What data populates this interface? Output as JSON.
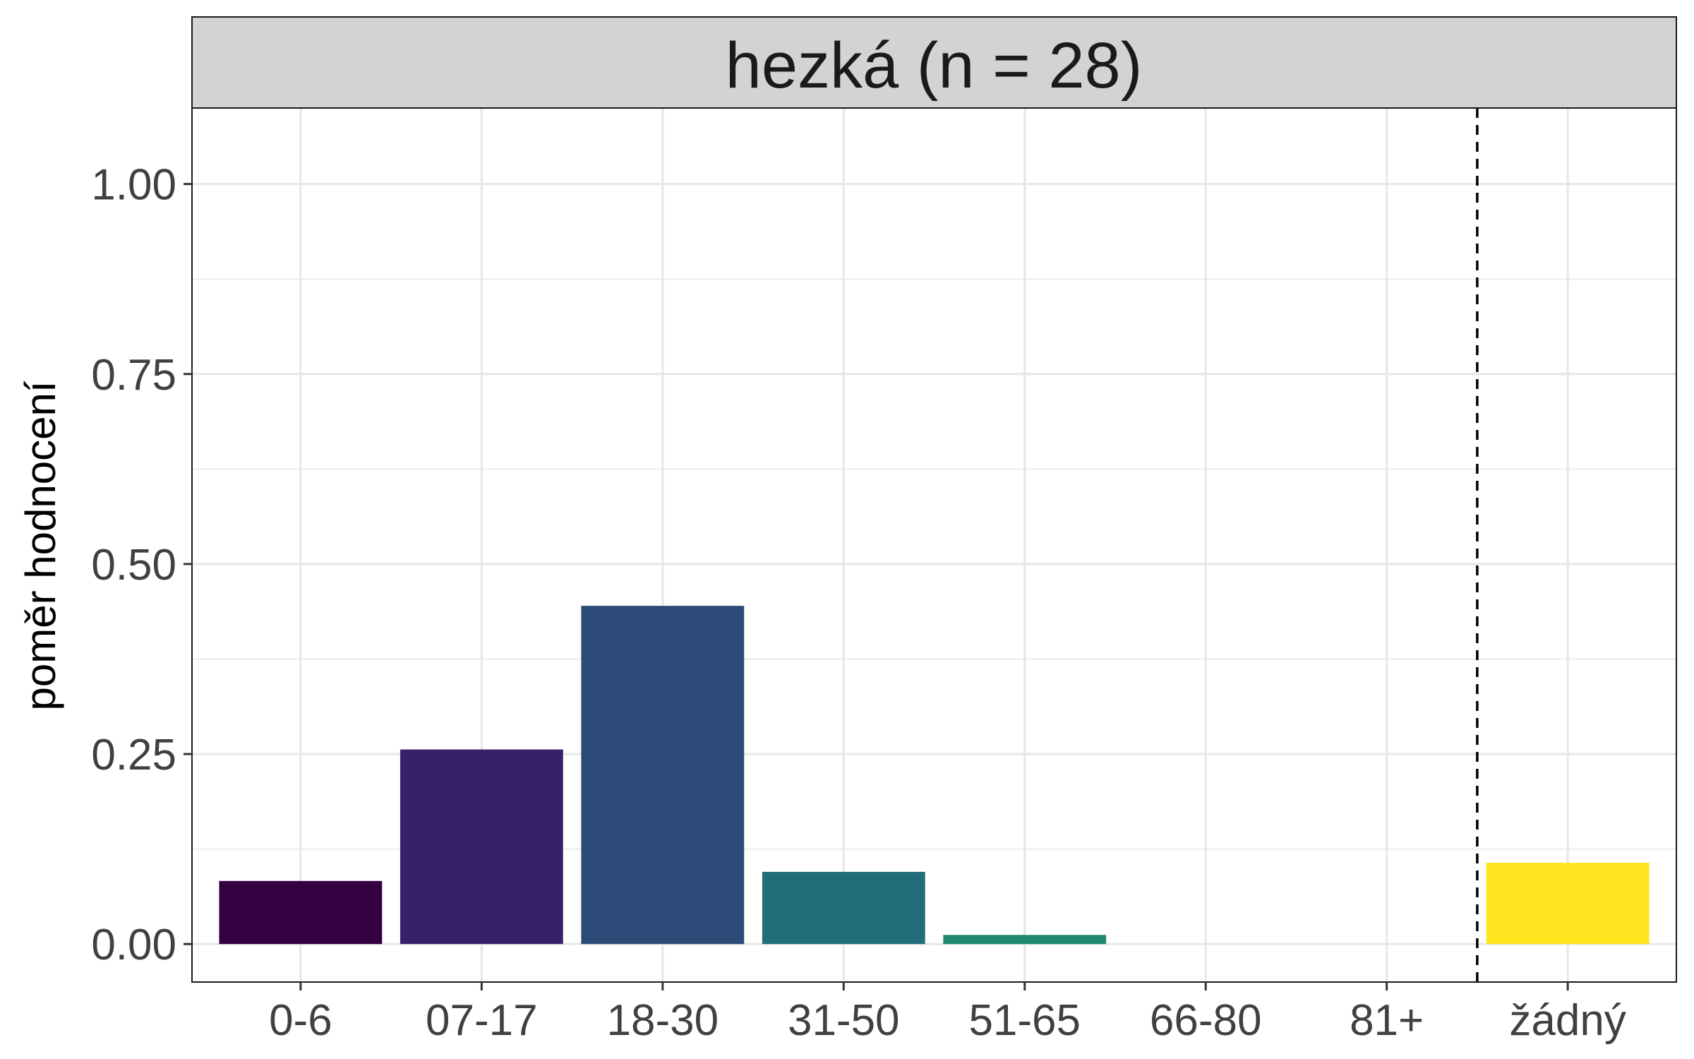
{
  "chart_data": {
    "type": "bar",
    "title": "hezká (n = 28)",
    "xlabel": "",
    "ylabel": "poměr hodnocení",
    "ylim": [
      -0.05,
      1.1
    ],
    "yticks": [
      0.0,
      0.25,
      0.5,
      0.75,
      1.0
    ],
    "ytick_labels": [
      "0.00",
      "0.25",
      "0.50",
      "0.75",
      "1.00"
    ],
    "categories": [
      "0-6",
      "07-17",
      "18-30",
      "31-50",
      "51-65",
      "66-80",
      "81+",
      "žádný"
    ],
    "values": [
      0.083,
      0.256,
      0.445,
      0.095,
      0.012,
      0.0,
      0.0,
      0.107
    ],
    "colors": [
      "#35003f",
      "#382169",
      "#2c4a78",
      "#216d78",
      "#1f8a72",
      "#3fae5f",
      "#8fcf3f",
      "#fde51f"
    ],
    "reference_line": {
      "between": [
        "81+",
        "žádný"
      ],
      "style": "dashed",
      "color": "#000000"
    },
    "grid": true,
    "legend": "none"
  }
}
